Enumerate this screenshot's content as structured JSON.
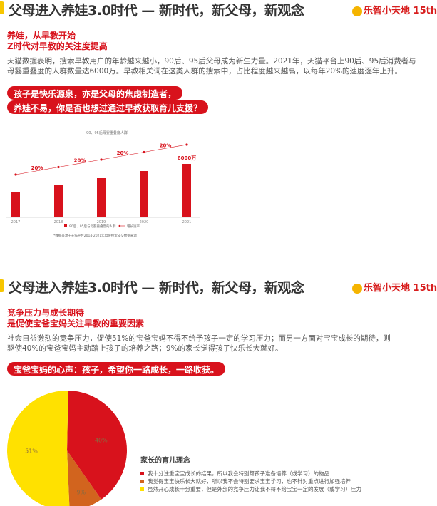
{
  "section1": {
    "title": "父母进入养娃3.0时代 — 新时代，新父母，新观念",
    "logo": {
      "text": "乐智小天地",
      "badge": "15th"
    },
    "subtitle1": "养娃，从早教开始",
    "subtitle2": "Z时代对早教的关注度提高",
    "body1": "天猫数据表明，搜索早教用户的年龄越来越小，90后、95后父母成为新生力量。2021年，天猫平台上90后、95后消费者与",
    "body2": "母婴重叠度的人群数量达6000万。早教相关词在这类人群的搜索中，占比程度越来越高，以每年20%的速度逐年上升。",
    "pill1": "孩子是快乐源泉，亦是父母的焦虑制造者，",
    "pill2": "养娃不易，你是否也想过通过早教获取育儿支援？"
  },
  "section2": {
    "title": "父母进入养娃3.0时代 — 新时代，新父母，新观念",
    "logo": {
      "text": "乐智小天地",
      "badge": "15th"
    },
    "subtitle1": "竞争压力与成长期待",
    "subtitle2": "是促使宝爸宝妈关注早教的重要因素",
    "body1": "社会日益激烈的竞争压力，促使51%的宝爸宝妈不得不给予孩子一定的学习压力；而另一方面对宝宝成长的期待，则",
    "body2": "驱使40%的宝爸宝妈主动踏上孩子的培养之路；9%的家长觉得孩子快乐长大就好。",
    "pill": "宝爸宝妈的心声：孩子，希望你一路成长，一路收获。"
  },
  "colors": {
    "accent": "#d8121c",
    "yellow": "#ffe100",
    "orange": "#d2641e",
    "title_bar": "#f7c600"
  },
  "chart_data": [
    {
      "type": "bar",
      "title": "90、95后母婴重叠度人群",
      "categories": [
        "2017",
        "2018",
        "2019",
        "2020",
        "2021"
      ],
      "series": [
        {
          "name": "90后、95后与母婴重叠度的人群",
          "values": [
            2800,
            3600,
            4400,
            5200,
            6000
          ],
          "type": "bar"
        },
        {
          "name": "增长速率",
          "type": "line",
          "labels": [
            "20%",
            "20%",
            "20%",
            "20%"
          ]
        }
      ],
      "data_labels": {
        "2021": "6000万"
      },
      "footnote": "*数据来源于天猫平台2014-2021年母婴搜索成交数据来源",
      "legend": "bottom",
      "grid": false
    },
    {
      "type": "pie",
      "title": "家长的育儿理念",
      "slices": [
        {
          "label": "我十分注重宝宝成长的结果，所以我会特别帮孩子准备培养（或学习）的物品",
          "value": 40,
          "text": "40%",
          "color": "#d8121c"
        },
        {
          "label": "我觉得宝宝快乐长大就好，所以我不会特别要求宝宝学习，也不针对重点进行加强培养",
          "value": 9,
          "text": "9%",
          "color": "#d2641e"
        },
        {
          "label": "虽然开心成长十分重要，但是外部的竞争压力让我不得不给宝宝一定的发展（或学习）压力",
          "value": 51,
          "text": "51%",
          "color": "#ffe100"
        }
      ],
      "legend": "right"
    }
  ]
}
